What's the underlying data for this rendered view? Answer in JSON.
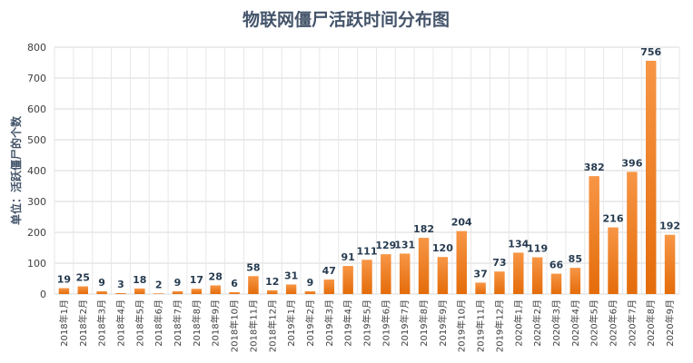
{
  "chart_data": {
    "type": "bar",
    "title": "物联网僵尸活跃时间分布图",
    "ylabel": "单位：活跃僵尸的个数",
    "xlabel": "",
    "ylim": [
      0,
      800
    ],
    "ytick_step": 100,
    "grid": true,
    "legend": "none",
    "bar_color_top": "#f79646",
    "bar_color_bottom": "#e46c0a",
    "categories": [
      "2018年1月",
      "2018年2月",
      "2018年3月",
      "2018年4月",
      "2018年5月",
      "2018年6月",
      "2018年7月",
      "2018年8月",
      "2018年9月",
      "2018年10月",
      "2018年11月",
      "2018年12月",
      "2019年1月",
      "2019年2月",
      "2019年3月",
      "2019年4月",
      "2019年5月",
      "2019年6月",
      "2019年7月",
      "2019年8月",
      "2019年9月",
      "2019年10月",
      "2019年11月",
      "2019年12月",
      "2020年1月",
      "2020年2月",
      "2020年3月",
      "2020年4月",
      "2020年5月",
      "2020年6月",
      "2020年7月",
      "2020年8月",
      "2020年9月"
    ],
    "values": [
      19,
      25,
      9,
      3,
      18,
      2,
      9,
      17,
      28,
      6,
      58,
      12,
      31,
      9,
      47,
      91,
      111,
      129,
      131,
      182,
      120,
      204,
      37,
      73,
      134,
      119,
      66,
      85,
      382,
      216,
      396,
      756,
      192
    ]
  }
}
